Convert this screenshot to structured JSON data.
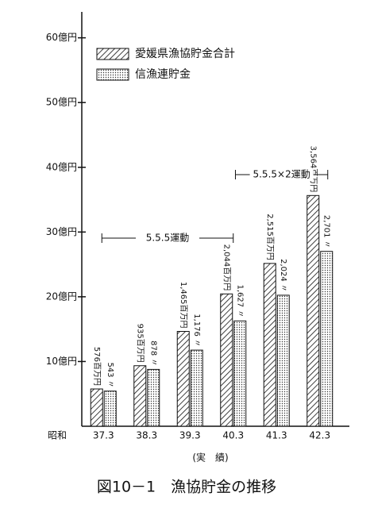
{
  "chart_data": {
    "type": "bar",
    "caption": "図10－1　漁協貯金の推移",
    "x_prefix": "昭和",
    "x_label": "(実　績)",
    "categories": [
      "37.3",
      "38.3",
      "39.3",
      "40.3",
      "41.3",
      "42.3"
    ],
    "series": [
      {
        "name": "愛媛県漁協貯金合計",
        "color": "#111111",
        "pattern": "hatch",
        "values": [
          5.76,
          9.35,
          14.65,
          20.44,
          25.15,
          35.64
        ],
        "value_labels": [
          "576百万円",
          "935百万円",
          "1,465百万円",
          "2,044百万円",
          "2,515百万円",
          "3,564百万円"
        ]
      },
      {
        "name": "信漁連貯金",
        "color": "#111111",
        "pattern": "dots",
        "values": [
          5.43,
          8.78,
          11.76,
          16.27,
          20.24,
          27.01
        ],
        "value_labels": [
          "543 〃",
          "878 〃",
          "1,176 〃",
          "1,627 〃",
          "2,024 〃",
          "2,701 〃"
        ]
      }
    ],
    "annotations": [
      "5.5.5運動",
      "5.5.5×2運動"
    ],
    "ylim": [
      0,
      64
    ],
    "yticks": [
      {
        "value": 10,
        "label": "10億円"
      },
      {
        "value": 20,
        "label": "20億円"
      },
      {
        "value": 30,
        "label": "30億円"
      },
      {
        "value": 40,
        "label": "40億円"
      },
      {
        "value": 50,
        "label": "50億円"
      },
      {
        "value": 60,
        "label": "60億円"
      }
    ],
    "legend": "top-left"
  }
}
